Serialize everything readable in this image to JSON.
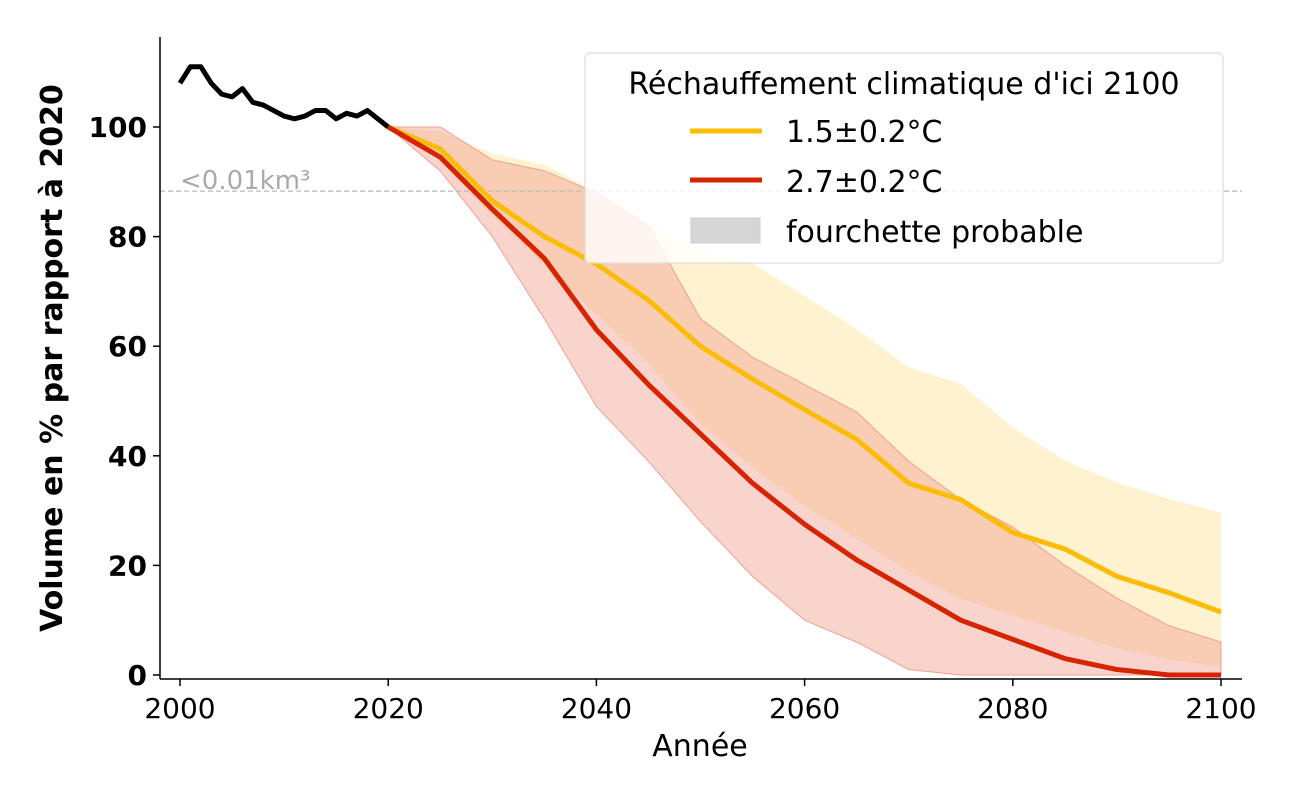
{
  "chart_data": {
    "type": "line",
    "xlabel": "Année",
    "ylabel": "Volume en % par rapport à 2020",
    "xlim": [
      1998,
      2102
    ],
    "ylim": [
      -0.7,
      116.4
    ],
    "xticks": [
      2000,
      2020,
      2040,
      2060,
      2080,
      2100
    ],
    "yticks": [
      0,
      20,
      40,
      60,
      80,
      100
    ],
    "grid": false,
    "legend": {
      "title": "Réchauffement climatique d'ici 2100",
      "placement": "top-right",
      "entries": [
        "1.5±0.2°C",
        "2.7±0.2°C",
        "fourchette probable"
      ]
    },
    "reference_line": {
      "y": 88.3,
      "label": "<0.01km³",
      "color": "#bbbbbb",
      "style": "dashed"
    },
    "historical": {
      "color": "#000000",
      "x": [
        2000,
        2001,
        2002,
        2003,
        2004,
        2005,
        2006,
        2007,
        2008,
        2009,
        2010,
        2011,
        2012,
        2013,
        2014,
        2015,
        2016,
        2017,
        2018,
        2019,
        2020
      ],
      "y": [
        108,
        111,
        111,
        108,
        106,
        105.5,
        107,
        104.5,
        104,
        103,
        102,
        101.5,
        102,
        103,
        103,
        101.5,
        102.5,
        102,
        103,
        101.5,
        100
      ]
    },
    "x": [
      2020,
      2025,
      2030,
      2035,
      2040,
      2045,
      2050,
      2055,
      2060,
      2065,
      2070,
      2075,
      2080,
      2085,
      2090,
      2095,
      2100
    ],
    "series": [
      {
        "name": "1.5±0.2°C",
        "color": "#fbbc05",
        "band_color": "#fff0c8",
        "median": [
          100,
          96,
          86.5,
          80,
          75,
          68.4,
          60,
          54,
          48.4,
          43,
          35,
          32,
          26,
          23,
          18,
          15,
          11.5
        ],
        "upper": [
          100,
          99,
          95,
          93,
          88,
          82,
          77,
          75,
          69,
          63,
          56,
          53,
          45,
          39,
          35,
          32,
          29.5
        ],
        "lower": [
          100,
          94,
          84,
          75,
          66,
          57,
          46,
          38,
          31,
          25,
          19,
          14,
          11,
          8,
          5,
          3,
          1.5
        ]
      },
      {
        "name": "2.7±0.2°C",
        "color": "#d62400",
        "band_color": "#f0a090",
        "median": [
          100,
          94.5,
          85,
          76,
          63,
          53,
          44,
          35,
          27.5,
          21,
          15.5,
          10,
          6.5,
          3,
          1,
          0,
          0
        ],
        "upper": [
          100,
          100,
          94,
          92,
          88,
          82,
          65,
          58,
          53,
          48,
          39,
          32,
          27,
          20,
          14,
          9,
          6
        ],
        "lower": [
          100,
          92,
          80,
          65,
          49,
          39,
          28,
          18,
          10,
          6,
          1,
          0,
          0,
          0,
          0,
          0,
          0
        ]
      }
    ]
  }
}
